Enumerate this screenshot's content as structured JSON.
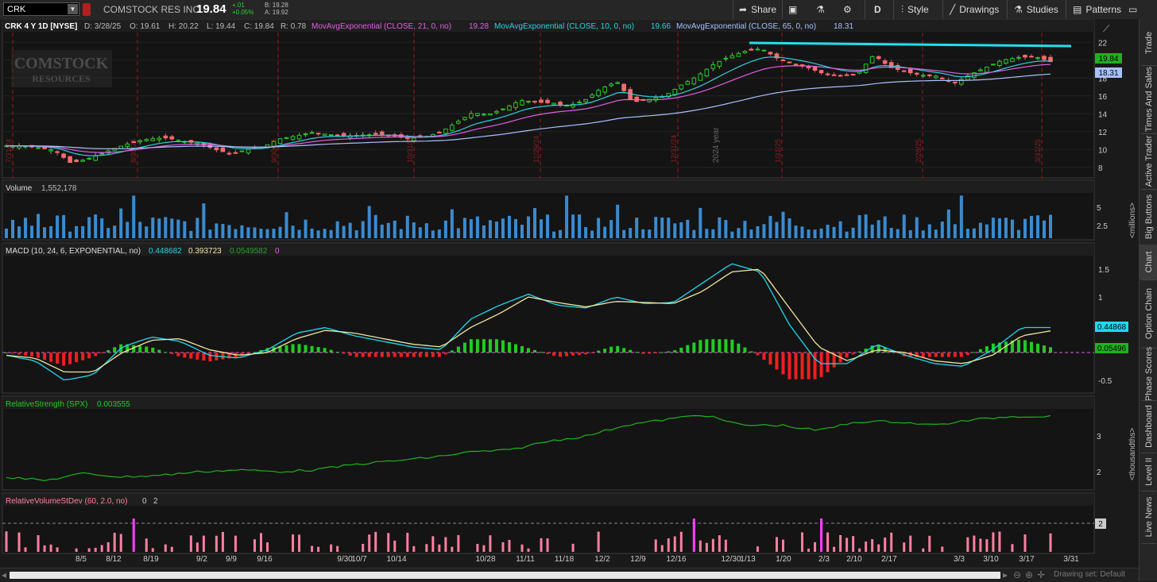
{
  "toolbar": {
    "symbol": "CRK",
    "company": "COMSTOCK RES INC",
    "last": "19.84",
    "change": "+.01",
    "change_pct": "+0.05%",
    "bid": "B: 19.28",
    "ask": "A: 19.92",
    "share_label": "Share",
    "period_label": "D",
    "style_label": "Style",
    "drawings_label": "Drawings",
    "studies_label": "Studies",
    "patterns_label": "Patterns"
  },
  "price_panel": {
    "title": "CRK 4 Y 1D [NYSE]",
    "date": "D: 3/28/25",
    "open": "O: 19.61",
    "high": "H: 20.22",
    "low": "L: 19.44",
    "close": "C: 19.84",
    "range": "R: 0.78",
    "ema21_label": "MovAvgExponential (CLOSE, 21, 0, no)",
    "ema21_value": "19.28",
    "ema10_label": "MovAvgExponential (CLOSE, 10, 0, no)",
    "ema10_value": "19.66",
    "ema65_label": "MovAvgExponential (CLOSE, 65, 0, no)",
    "ema65_value": "18.31",
    "logo_line1": "COMSTOCK",
    "logo_line2": "RESOURCES",
    "price_tag": "19.84",
    "ema65_tag": "18.31",
    "year_marker": "2024 year",
    "vertical_dates": [
      "7/31/24",
      "8/30/24",
      "9/30/24",
      "10/31/24",
      "11/29/24",
      "12/31/24",
      "1/31/25",
      "2/28/25",
      "3/31/25"
    ],
    "y_ticks": [
      "22",
      "20",
      "18",
      "16",
      "14",
      "12",
      "10",
      "8"
    ]
  },
  "volume_panel": {
    "label": "Volume",
    "value": "1,552,178",
    "y_ticks": [
      "5",
      "2.5"
    ],
    "units": "<millions>"
  },
  "macd_panel": {
    "label": "MACD (10, 24, 6, EXPONENTIAL, no)",
    "macd_value": "0.448682",
    "signal_value": "0.393723",
    "hist_value": "0.0549582",
    "zero_value": "0",
    "y_ticks": [
      "1.5",
      "1",
      "0.5",
      "-0.5"
    ],
    "macd_tag": "0.44868",
    "hist_tag": "0.05496"
  },
  "rs_panel": {
    "label": "RelativeStrength (SPX)",
    "value": "0.003555",
    "y_ticks": [
      "3",
      "2"
    ],
    "units": "<thousandths>"
  },
  "rvol_panel": {
    "label": "RelativeVolumeStDev (60, 2.0, no)",
    "value1": "0",
    "value2": "2",
    "tag": "2"
  },
  "x_axis": [
    "8/5",
    "8/12",
    "8/19",
    "9/2",
    "9/9",
    "9/16",
    "9/30",
    "10/7",
    "10/14",
    "10/28",
    "11/11",
    "11/18",
    "12/2",
    "12/9",
    "12/16",
    "12/30",
    "1/13",
    "1/20",
    "2/3",
    "2/10",
    "2/17",
    "3/3",
    "3/10",
    "3/17",
    "3/31"
  ],
  "right_tabs": [
    "Trade",
    "Times And Sales",
    "Active Trader",
    "Big Buttons",
    "Chart",
    "Option Chain",
    "Phase Scores",
    "Dashboard",
    "Level II",
    "Live News"
  ],
  "status": {
    "drawing_set": "Drawing set: Default"
  },
  "colors": {
    "up": "#22cc22",
    "down": "#ff6b6b",
    "ema10": "#30d0e0",
    "ema21": "#e060e0",
    "ema65": "#a8c0ff",
    "macd": "#20d8f0",
    "signal": "#f0e6a0",
    "volume": "#3a8bd0",
    "rs": "#20b020",
    "rvol": "#ff7fa0",
    "resistance": "#20e0f0"
  },
  "chart_data": [
    {
      "type": "candlestick",
      "title": "CRK 4 Y 1D [NYSE]",
      "ylim": [
        7,
        23
      ],
      "x_range": [
        "7/26/24",
        "3/28/25"
      ],
      "close_path": [
        10.4,
        10.4,
        10.2,
        9.9,
        8.5,
        8.9,
        9.6,
        10.3,
        10.9,
        11.2,
        11.3,
        10.9,
        10.7,
        10.0,
        9.5,
        10.0,
        10.3,
        11.2,
        11.5,
        11.9,
        11.7,
        11.5,
        11.6,
        11.7,
        11.6,
        11.2,
        11.4,
        11.9,
        13.0,
        14.1,
        13.9,
        14.6,
        15.5,
        15.3,
        15.2,
        14.9,
        15.5,
        16.8,
        17.6,
        15.3,
        15.6,
        16.0,
        17.2,
        18.2,
        19.5,
        20.4,
        21.0,
        21.3,
        20.2,
        19.6,
        19.1,
        18.4,
        18.2,
        18.5,
        20.6,
        19.2,
        18.7,
        18.3,
        18.2,
        17.4,
        18.4,
        19.2,
        20.0,
        20.3,
        20.4,
        19.84
      ],
      "resistance": 21.4
    },
    {
      "type": "bar",
      "title": "Volume",
      "units": "millions",
      "last_value": 1552178,
      "ylim": [
        0,
        8
      ]
    },
    {
      "type": "line",
      "title": "MACD (10, 24, 6, EXPONENTIAL, no)",
      "ylim": [
        -0.75,
        1.75
      ],
      "series": [
        {
          "name": "MACD",
          "values": [
            -0.05,
            -0.15,
            -0.5,
            -0.4,
            0.1,
            0.28,
            0.2,
            -0.05,
            -0.1,
            0.05,
            0.35,
            0.45,
            0.3,
            0.2,
            0.1,
            0.05,
            0.6,
            0.85,
            1.05,
            0.85,
            0.8,
            1.0,
            0.88,
            0.9,
            1.25,
            1.6,
            1.45,
            0.5,
            -0.2,
            -0.2,
            0.15,
            -0.05,
            -0.2,
            -0.25,
            0.05,
            0.45,
            0.45
          ]
        },
        {
          "name": "Signal",
          "values": [
            -0.05,
            -0.1,
            -0.35,
            -0.35,
            0.0,
            0.22,
            0.25,
            0.05,
            -0.05,
            0.0,
            0.25,
            0.4,
            0.35,
            0.25,
            0.15,
            0.1,
            0.45,
            0.7,
            1.0,
            0.9,
            0.82,
            0.92,
            0.9,
            0.88,
            1.1,
            1.45,
            1.5,
            0.8,
            0.1,
            -0.15,
            0.05,
            0.0,
            -0.15,
            -0.2,
            -0.05,
            0.3,
            0.39
          ]
        }
      ]
    },
    {
      "type": "line",
      "title": "RelativeStrength (SPX)",
      "ylim": [
        1.5,
        3.8
      ],
      "series": [
        {
          "name": "RelativeStrength (SPX)",
          "values": [
            1.85,
            1.75,
            1.95,
            1.85,
            1.9,
            2.0,
            2.05,
            2.0,
            2.05,
            2.2,
            2.3,
            2.4,
            2.55,
            2.6,
            2.85,
            3.0,
            3.3,
            3.45,
            3.6,
            3.3,
            3.3,
            3.15,
            3.4,
            3.4,
            3.3,
            3.45,
            3.55,
            3.55
          ]
        }
      ]
    }
  ]
}
